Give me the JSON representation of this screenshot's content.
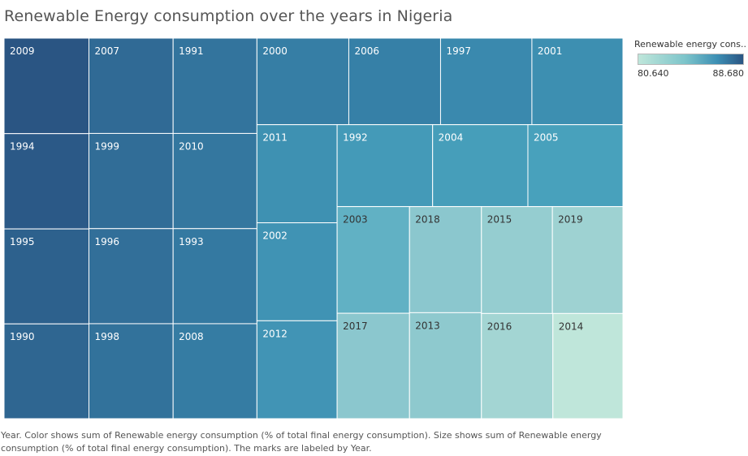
{
  "title": "Renewable Energy consumption over the years in Nigeria",
  "legend": {
    "title": "Renewable energy cons..",
    "min_label": "80.640",
    "max_label": "88.680",
    "color_low": "#bfe6da",
    "color_high": "#2a5583"
  },
  "caption": "Year.  Color shows sum of Renewable energy consumption (% of total final energy consumption).  Size shows sum of Renewable energy consumption (% of total final energy consumption).  The marks are labeled by Year.",
  "chart_data": {
    "type": "treemap",
    "title": "Renewable Energy consumption over the years in Nigeria",
    "size_measure": "Renewable energy consumption (% of total final energy consumption)",
    "color_measure": "Renewable energy consumption (% of total final energy consumption)",
    "color_range": [
      80.64,
      88.68
    ],
    "items": [
      {
        "label": "2009",
        "value": 88.68
      },
      {
        "label": "1994",
        "value": 88.5
      },
      {
        "label": "1995",
        "value": 88.2
      },
      {
        "label": "1990",
        "value": 88.0
      },
      {
        "label": "2007",
        "value": 87.8
      },
      {
        "label": "1999",
        "value": 87.7
      },
      {
        "label": "1996",
        "value": 87.6
      },
      {
        "label": "1998",
        "value": 87.5
      },
      {
        "label": "1991",
        "value": 87.4
      },
      {
        "label": "2010",
        "value": 87.3
      },
      {
        "label": "1993",
        "value": 87.2
      },
      {
        "label": "2008",
        "value": 87.1
      },
      {
        "label": "2000",
        "value": 87.0
      },
      {
        "label": "2006",
        "value": 86.9
      },
      {
        "label": "1997",
        "value": 86.5
      },
      {
        "label": "2001",
        "value": 86.2
      },
      {
        "label": "2011",
        "value": 86.1
      },
      {
        "label": "2002",
        "value": 86.0
      },
      {
        "label": "2012",
        "value": 85.9
      },
      {
        "label": "1992",
        "value": 85.6
      },
      {
        "label": "2004",
        "value": 85.4
      },
      {
        "label": "2005",
        "value": 85.2
      },
      {
        "label": "2003",
        "value": 84.5
      },
      {
        "label": "2017",
        "value": 83.5
      },
      {
        "label": "2018",
        "value": 83.5
      },
      {
        "label": "2013",
        "value": 83.4
      },
      {
        "label": "2015",
        "value": 83.0
      },
      {
        "label": "2019",
        "value": 82.5
      },
      {
        "label": "2016",
        "value": 82.2
      },
      {
        "label": "2014",
        "value": 80.64
      }
    ]
  }
}
